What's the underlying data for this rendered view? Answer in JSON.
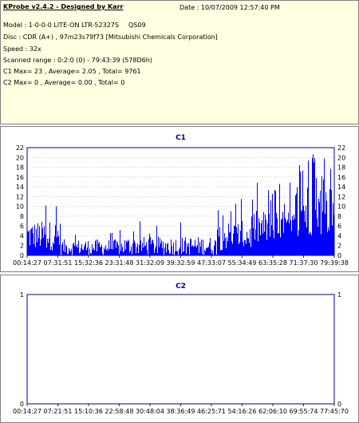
{
  "header": {
    "app_title": "KProbe v2.4.2 - Designed by Karr",
    "date_text": "Date : 10/07/2009 12:57:40 PM",
    "model": "Model : 1-0-0-0 LITE-ON LTR-52327S",
    "firmware": "QS09",
    "disc": "Disc : CDR (A+) , 97m23s79f73 [Mitsubishi Chemicals Corporation]",
    "speed": "Speed : 32x",
    "scanned_range": "Scanned range : 0:2:0 (0) - 79:43:39 (578D6h)",
    "c1_summary": "C1 Max= 23 , Average= 2.05 , Total= 9761",
    "c2_summary": "C2 Max= 0 , Average= 0.00 , Total= 0"
  },
  "colors": {
    "bar": "#0000ff",
    "grid": "#9aa0c8",
    "title": "#000080",
    "info_bg": "#ffffe1"
  },
  "chart_data": [
    {
      "type": "bar",
      "title": "C1",
      "ylim": [
        0,
        22
      ],
      "yticks": [
        0,
        2,
        4,
        6,
        8,
        10,
        12,
        14,
        16,
        18,
        20,
        22
      ],
      "xlim_minutes": [
        14.45,
        79.65
      ],
      "xtick_labels": [
        "00:14:27",
        "07:31:51",
        "15:32:36",
        "23:31:48",
        "31:32:09",
        "39:32:59",
        "47:33:07",
        "55:34:49",
        "63:35:28",
        "71:37:30",
        "79:39:38"
      ],
      "segments": [
        {
          "from_minute": 14.45,
          "to_minute": 21.5,
          "min": 1,
          "max": 12,
          "spike_rate": 0.15
        },
        {
          "from_minute": 21.5,
          "to_minute": 35,
          "min": 0,
          "max": 6,
          "spike_rate": 0.06
        },
        {
          "from_minute": 35,
          "to_minute": 55,
          "min": 0,
          "max": 7,
          "spike_rate": 0.05
        },
        {
          "from_minute": 55,
          "to_minute": 62,
          "min": 1,
          "max": 12,
          "spike_rate": 0.12
        },
        {
          "from_minute": 62,
          "to_minute": 72,
          "min": 2,
          "max": 15,
          "spike_rate": 0.15
        },
        {
          "from_minute": 72,
          "to_minute": 79.65,
          "min": 4,
          "max": 23,
          "spike_rate": 0.2
        }
      ],
      "max": 23,
      "average": 2.05,
      "total": 9761
    },
    {
      "type": "bar",
      "title": "C2",
      "ylim": [
        0,
        1
      ],
      "yticks": [
        0,
        1
      ],
      "xlim_minutes": [
        14.45,
        79.65
      ],
      "xtick_labels": [
        "00:14:27",
        "07:21:51",
        "15:10:36",
        "22:58:48",
        "30:48:04",
        "38:36:49",
        "46:25:71",
        "54:16:26",
        "62:06:10",
        "69:55:74",
        "77:45:70"
      ],
      "values": [],
      "max": 0,
      "average": 0.0,
      "total": 0
    }
  ]
}
